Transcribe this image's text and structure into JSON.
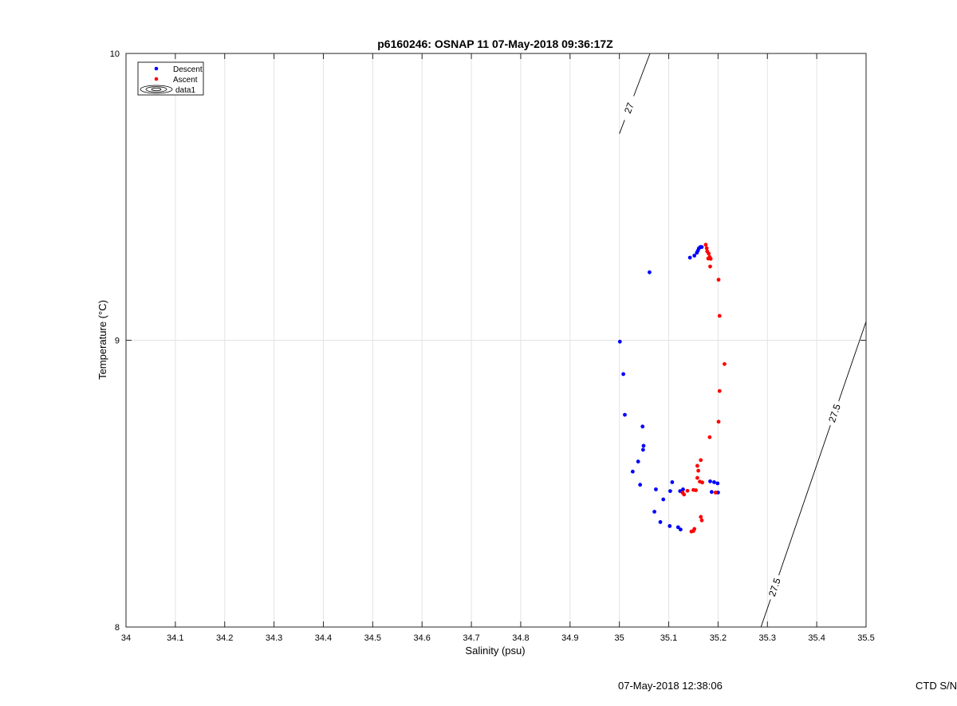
{
  "footer": {
    "timestamp": "07-May-2018 12:38:06",
    "instrument": "CTD S/N"
  },
  "chart_data": {
    "type": "scatter",
    "title": "p6160246: OSNAP 11 07-May-2018 09:36:17Z",
    "xlabel": "Salinity (psu)",
    "ylabel": "Temperature (°C)",
    "xlim": [
      34,
      35.5
    ],
    "ylim": [
      8,
      10
    ],
    "x_ticks": [
      "34",
      "34.1",
      "34.2",
      "34.3",
      "34.4",
      "34.5",
      "34.6",
      "34.7",
      "34.8",
      "34.9",
      "35",
      "35.1",
      "35.2",
      "35.3",
      "35.4",
      "35.5"
    ],
    "y_ticks": [
      "8",
      "9",
      "10"
    ],
    "grid": true,
    "legend_position": "top-left",
    "legend": [
      {
        "label": "Descent",
        "kind": "dot",
        "color": "#0000ff"
      },
      {
        "label": "Ascent",
        "kind": "dot",
        "color": "#ff0000"
      },
      {
        "label": "data1",
        "kind": "contour",
        "color": "#000000"
      }
    ],
    "series": [
      {
        "name": "Descent",
        "color": "#0000ff",
        "points": [
          [
            35.061,
            9.237
          ],
          [
            35.143,
            9.288
          ],
          [
            35.152,
            9.295
          ],
          [
            35.157,
            9.305
          ],
          [
            35.159,
            9.312
          ],
          [
            35.161,
            9.32
          ],
          [
            35.164,
            9.325
          ],
          [
            35.167,
            9.325
          ],
          [
            35.001,
            8.995
          ],
          [
            35.008,
            8.882
          ],
          [
            35.011,
            8.74
          ],
          [
            35.047,
            8.699
          ],
          [
            35.049,
            8.632
          ],
          [
            35.048,
            8.618
          ],
          [
            35.038,
            8.577
          ],
          [
            35.027,
            8.542
          ],
          [
            35.042,
            8.496
          ],
          [
            35.074,
            8.48
          ],
          [
            35.107,
            8.505
          ],
          [
            35.103,
            8.474
          ],
          [
            35.089,
            8.445
          ],
          [
            35.123,
            8.474
          ],
          [
            35.129,
            8.48
          ],
          [
            35.071,
            8.402
          ],
          [
            35.083,
            8.366
          ],
          [
            35.102,
            8.352
          ],
          [
            35.119,
            8.348
          ],
          [
            35.124,
            8.34
          ],
          [
            35.184,
            8.508
          ],
          [
            35.187,
            8.471
          ],
          [
            35.192,
            8.505
          ],
          [
            35.199,
            8.501
          ],
          [
            35.2,
            8.469
          ]
        ]
      },
      {
        "name": "Ascent",
        "color": "#ff0000",
        "points": [
          [
            35.175,
            9.333
          ],
          [
            35.177,
            9.321
          ],
          [
            35.178,
            9.31
          ],
          [
            35.181,
            9.302
          ],
          [
            35.183,
            9.29
          ],
          [
            35.18,
            9.285
          ],
          [
            35.185,
            9.284
          ],
          [
            35.184,
            9.257
          ],
          [
            35.201,
            9.211
          ],
          [
            35.203,
            9.085
          ],
          [
            35.213,
            8.917
          ],
          [
            35.203,
            8.823
          ],
          [
            35.201,
            8.716
          ],
          [
            35.183,
            8.662
          ],
          [
            35.165,
            8.582
          ],
          [
            35.158,
            8.562
          ],
          [
            35.16,
            8.545
          ],
          [
            35.158,
            8.52
          ],
          [
            35.163,
            8.507
          ],
          [
            35.168,
            8.504
          ],
          [
            35.128,
            8.469
          ],
          [
            35.131,
            8.462
          ],
          [
            35.138,
            8.475
          ],
          [
            35.15,
            8.478
          ],
          [
            35.155,
            8.477
          ],
          [
            35.165,
            8.384
          ],
          [
            35.167,
            8.372
          ],
          [
            35.152,
            8.342
          ],
          [
            35.15,
            8.335
          ],
          [
            35.146,
            8.333
          ],
          [
            35.195,
            8.469
          ]
        ]
      }
    ],
    "isopycnals": [
      {
        "label": "27",
        "points": [
          [
            35.0,
            9.72
          ],
          [
            35.062,
            10.0
          ]
        ]
      },
      {
        "label": "27.5",
        "points": [
          [
            35.287,
            8.0
          ],
          [
            35.5,
            9.065
          ]
        ]
      }
    ]
  }
}
